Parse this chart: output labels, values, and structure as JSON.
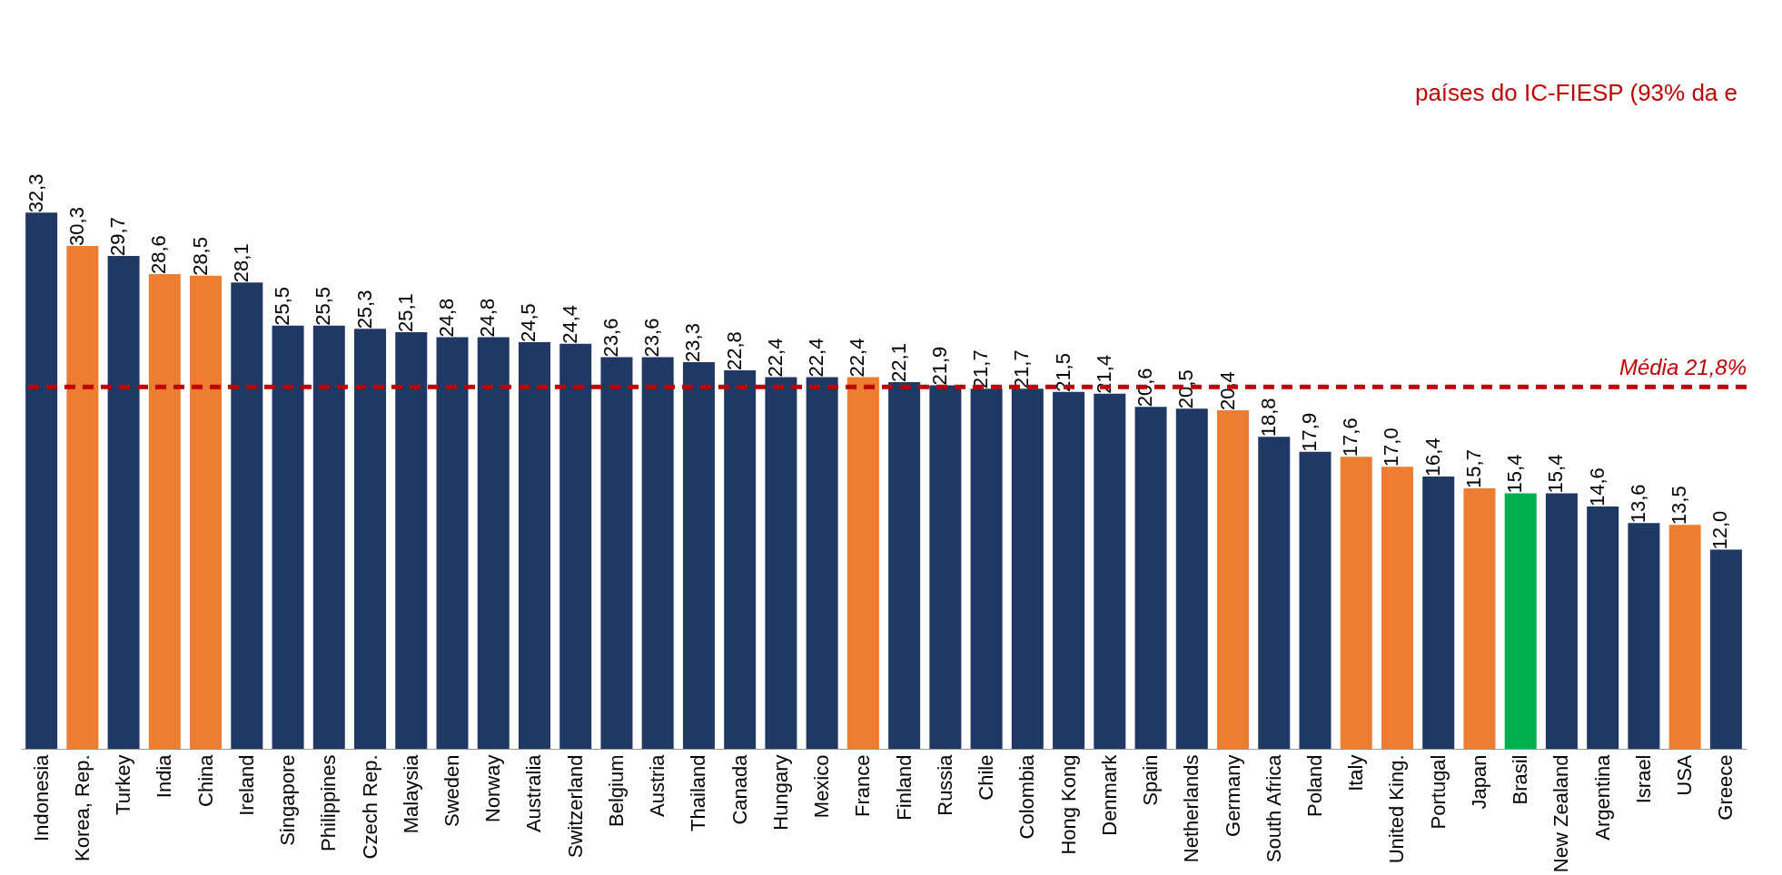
{
  "chart_data": {
    "type": "bar",
    "categories": [
      "Indonesia",
      "Korea, Rep.",
      "Turkey",
      "India",
      "China",
      "Ireland",
      "Singapore",
      "Philippines",
      "Czech Rep.",
      "Malaysia",
      "Sweden",
      "Norway",
      "Australia",
      "Switzerland",
      "Belgium",
      "Austria",
      "Thailand",
      "Canada",
      "Hungary",
      "Mexico",
      "France",
      "Finland",
      "Russia",
      "Chile",
      "Colombia",
      "Hong Kong",
      "Denmark",
      "Spain",
      "Netherlands",
      "Germany",
      "South Africa",
      "Poland",
      "Italy",
      "United King.",
      "Portugal",
      "Japan",
      "Brasil",
      "New Zealand",
      "Argentina",
      "Israel",
      "USA",
      "Greece"
    ],
    "values": [
      32.3,
      30.3,
      29.7,
      28.6,
      28.5,
      28.1,
      25.5,
      25.5,
      25.3,
      25.1,
      24.8,
      24.8,
      24.5,
      24.4,
      23.6,
      23.6,
      23.3,
      22.8,
      22.4,
      22.4,
      22.4,
      22.1,
      21.9,
      21.7,
      21.7,
      21.5,
      21.4,
      20.6,
      20.5,
      20.4,
      18.8,
      17.9,
      17.6,
      17.0,
      16.4,
      15.7,
      15.4,
      15.4,
      14.6,
      13.6,
      13.5,
      12.0
    ],
    "value_labels": [
      "32,3",
      "30,3",
      "29,7",
      "28,6",
      "28,5",
      "28,1",
      "25,5",
      "25,5",
      "25,3",
      "25,1",
      "24,8",
      "24,8",
      "24,5",
      "24,4",
      "23,6",
      "23,6",
      "23,3",
      "22,8",
      "22,4",
      "22,4",
      "22,4",
      "22,1",
      "21,9",
      "21,7",
      "21,7",
      "21,5",
      "21,4",
      "20,6",
      "20,5",
      "20,4",
      "18,8",
      "17,9",
      "17,6",
      "17,0",
      "16,4",
      "15,7",
      "15,4",
      "15,4",
      "14,6",
      "13,6",
      "13,5",
      "12,0"
    ],
    "colors": [
      "#1f3864",
      "#ed7d31",
      "#1f3864",
      "#ed7d31",
      "#ed7d31",
      "#1f3864",
      "#1f3864",
      "#1f3864",
      "#1f3864",
      "#1f3864",
      "#1f3864",
      "#1f3864",
      "#1f3864",
      "#1f3864",
      "#1f3864",
      "#1f3864",
      "#1f3864",
      "#1f3864",
      "#1f3864",
      "#1f3864",
      "#ed7d31",
      "#1f3864",
      "#1f3864",
      "#1f3864",
      "#1f3864",
      "#1f3864",
      "#1f3864",
      "#1f3864",
      "#1f3864",
      "#ed7d31",
      "#1f3864",
      "#1f3864",
      "#ed7d31",
      "#ed7d31",
      "#1f3864",
      "#ed7d31",
      "#00b050",
      "#1f3864",
      "#1f3864",
      "#1f3864",
      "#ed7d31",
      "#1f3864"
    ],
    "ref_lines": [
      {
        "axis": "y",
        "value": 21.8,
        "label": "Média 21,8%",
        "color": "#c00000",
        "line_style": "dashed"
      }
    ],
    "annotations": [
      "países do IC-FIESP (93% da e"
    ],
    "tick_labels": "x",
    "grid": false
  }
}
